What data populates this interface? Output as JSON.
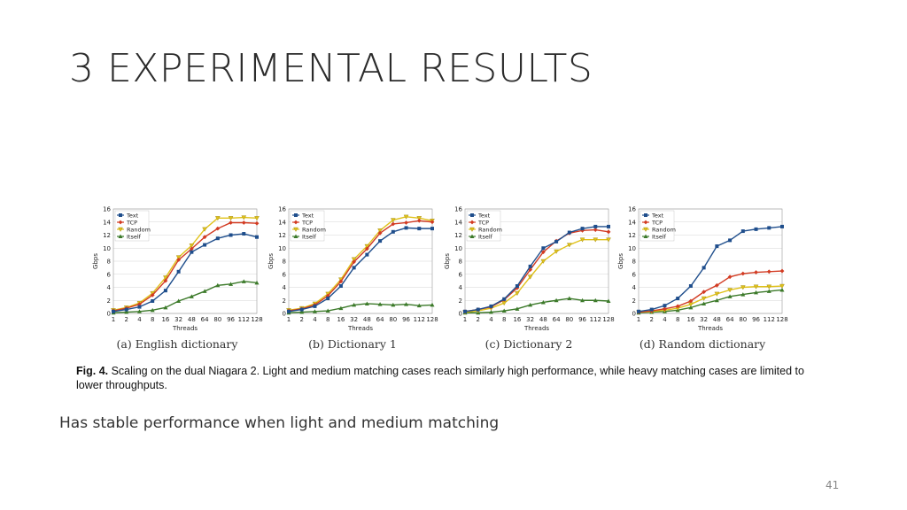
{
  "slide": {
    "title": "3 EXPERIMENTAL RESULTS",
    "body_text": "Has stable performance when light and medium matching",
    "page_number": "41"
  },
  "figure": {
    "caption_label": "Fig. 4.",
    "caption_text": " Scaling on the dual Niagara 2. Light and medium matching cases reach similarly high performance, while heavy matching cases are limited to lower throughputs."
  },
  "colors": {
    "Text": "#1f4e8c",
    "TCP": "#d23b22",
    "Random": "#e0c21a",
    "Itself": "#3c7a2a",
    "grid": "#d6d6d6"
  },
  "chart_data": [
    {
      "type": "line",
      "subcaption": "(a) English dictionary",
      "categories": [
        "1",
        "2",
        "4",
        "8",
        "16",
        "32",
        "48",
        "64",
        "80",
        "96",
        "112",
        "128"
      ],
      "xlabel": "Threads",
      "ylabel": "Gbps",
      "ylim": [
        0,
        16
      ],
      "yticks": [
        0,
        2,
        4,
        6,
        8,
        10,
        12,
        14,
        16
      ],
      "grid": true,
      "legend": "top-left",
      "series": [
        {
          "name": "Text",
          "values": [
            0.3,
            0.6,
            1.0,
            1.9,
            3.5,
            6.4,
            9.4,
            10.5,
            11.5,
            12.0,
            12.2,
            11.7
          ]
        },
        {
          "name": "TCP",
          "values": [
            0.4,
            0.8,
            1.4,
            2.8,
            5.0,
            8.2,
            9.9,
            11.7,
            13.0,
            13.9,
            13.9,
            13.8
          ]
        },
        {
          "name": "Random",
          "values": [
            0.5,
            0.9,
            1.6,
            3.1,
            5.5,
            8.6,
            10.4,
            12.9,
            14.6,
            14.6,
            14.7,
            14.6
          ]
        },
        {
          "name": "Itself",
          "values": [
            0.1,
            0.2,
            0.3,
            0.5,
            0.9,
            1.9,
            2.6,
            3.4,
            4.3,
            4.5,
            4.9,
            4.7
          ]
        }
      ]
    },
    {
      "type": "line",
      "subcaption": "(b) Dictionary 1",
      "categories": [
        "1",
        "2",
        "4",
        "8",
        "16",
        "32",
        "48",
        "64",
        "80",
        "96",
        "112",
        "128"
      ],
      "xlabel": "Threads",
      "ylabel": "Gbps",
      "ylim": [
        0,
        16
      ],
      "yticks": [
        0,
        2,
        4,
        6,
        8,
        10,
        12,
        14,
        16
      ],
      "grid": true,
      "legend": "top-left",
      "series": [
        {
          "name": "Text",
          "values": [
            0.3,
            0.6,
            1.1,
            2.3,
            4.2,
            7.0,
            9.0,
            11.1,
            12.5,
            13.1,
            13.0,
            13.0
          ]
        },
        {
          "name": "TCP",
          "values": [
            0.4,
            0.7,
            1.3,
            2.7,
            4.9,
            7.9,
            9.9,
            12.3,
            13.7,
            13.9,
            14.2,
            14.0
          ]
        },
        {
          "name": "Random",
          "values": [
            0.5,
            0.8,
            1.5,
            3.0,
            5.2,
            8.3,
            10.3,
            12.7,
            14.3,
            14.8,
            14.6,
            14.2
          ]
        },
        {
          "name": "Itself",
          "values": [
            0.1,
            0.2,
            0.3,
            0.4,
            0.8,
            1.3,
            1.5,
            1.4,
            1.3,
            1.4,
            1.2,
            1.3
          ]
        }
      ]
    },
    {
      "type": "line",
      "subcaption": "(c) Dictionary 2",
      "categories": [
        "1",
        "2",
        "4",
        "8",
        "16",
        "32",
        "48",
        "64",
        "80",
        "96",
        "112",
        "128"
      ],
      "xlabel": "Threads",
      "ylabel": "Gbps",
      "ylim": [
        0,
        16
      ],
      "yticks": [
        0,
        2,
        4,
        6,
        8,
        10,
        12,
        14,
        16
      ],
      "grid": true,
      "legend": "top-left",
      "series": [
        {
          "name": "Text",
          "values": [
            0.3,
            0.6,
            1.1,
            2.2,
            4.2,
            7.2,
            10.0,
            11.0,
            12.4,
            13.0,
            13.3,
            13.3
          ]
        },
        {
          "name": "TCP",
          "values": [
            0.3,
            0.6,
            1.0,
            2.1,
            3.9,
            6.7,
            9.4,
            11.1,
            12.3,
            12.7,
            12.8,
            12.5
          ]
        },
        {
          "name": "Random",
          "values": [
            0.2,
            0.4,
            0.8,
            1.6,
            3.1,
            5.6,
            8.0,
            9.5,
            10.5,
            11.3,
            11.3,
            11.3
          ]
        },
        {
          "name": "Itself",
          "values": [
            0.1,
            0.1,
            0.2,
            0.4,
            0.7,
            1.3,
            1.7,
            2.0,
            2.3,
            2.0,
            2.0,
            1.9
          ]
        }
      ]
    },
    {
      "type": "line",
      "subcaption": "(d) Random dictionary",
      "categories": [
        "1",
        "2",
        "4",
        "8",
        "16",
        "32",
        "48",
        "64",
        "80",
        "96",
        "112",
        "128"
      ],
      "xlabel": "Threads",
      "ylabel": "Gbps",
      "ylim": [
        0,
        16
      ],
      "yticks": [
        0,
        2,
        4,
        6,
        8,
        10,
        12,
        14,
        16
      ],
      "grid": true,
      "legend": "top-left",
      "series": [
        {
          "name": "Text",
          "values": [
            0.3,
            0.6,
            1.2,
            2.3,
            4.2,
            7.0,
            10.3,
            11.2,
            12.6,
            12.9,
            13.1,
            13.3
          ]
        },
        {
          "name": "TCP",
          "values": [
            0.2,
            0.4,
            0.7,
            1.1,
            1.9,
            3.3,
            4.3,
            5.6,
            6.1,
            6.3,
            6.4,
            6.5
          ]
        },
        {
          "name": "Random",
          "values": [
            0.2,
            0.3,
            0.5,
            0.8,
            1.4,
            2.3,
            3.0,
            3.6,
            4.0,
            4.1,
            4.1,
            4.2
          ]
        },
        {
          "name": "Itself",
          "values": [
            0.1,
            0.2,
            0.3,
            0.5,
            0.9,
            1.5,
            2.0,
            2.6,
            2.9,
            3.2,
            3.4,
            3.6
          ]
        }
      ]
    }
  ]
}
